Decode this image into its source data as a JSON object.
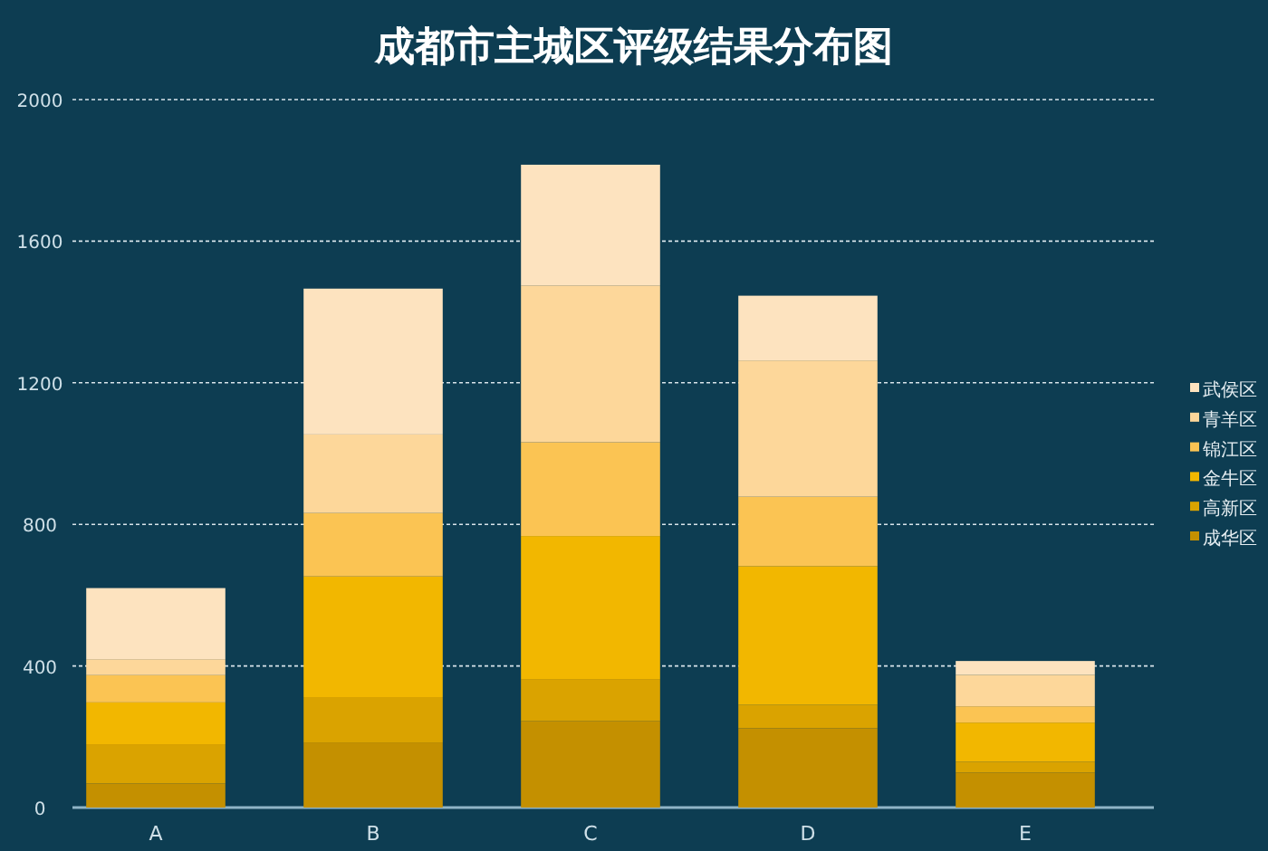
{
  "chart_data": {
    "type": "bar",
    "stacked": true,
    "title": "成都市主城区评级结果分布图",
    "categories": [
      "A",
      "B",
      "C",
      "D",
      "E"
    ],
    "series": [
      {
        "name": "成华区",
        "color": "#c49000",
        "values": [
          68,
          184,
          244,
          224,
          99
        ]
      },
      {
        "name": "高新区",
        "color": "#daa300",
        "values": [
          111,
          128,
          119,
          66,
          30
        ]
      },
      {
        "name": "金牛区",
        "color": "#f2b700",
        "values": [
          118,
          341,
          404,
          392,
          111
        ]
      },
      {
        "name": "锦江区",
        "color": "#fbc453",
        "values": [
          77,
          179,
          265,
          196,
          46
        ]
      },
      {
        "name": "青羊区",
        "color": "#fdd79a",
        "values": [
          45,
          222,
          443,
          385,
          89
        ]
      },
      {
        "name": "武侯区",
        "color": "#fde3bf",
        "values": [
          201,
          412,
          341,
          183,
          39
        ]
      }
    ],
    "ylim": [
      0,
      2000
    ],
    "yticks": [
      0,
      400,
      800,
      1200,
      1600,
      2000
    ],
    "grid": "y",
    "legend": "right"
  }
}
